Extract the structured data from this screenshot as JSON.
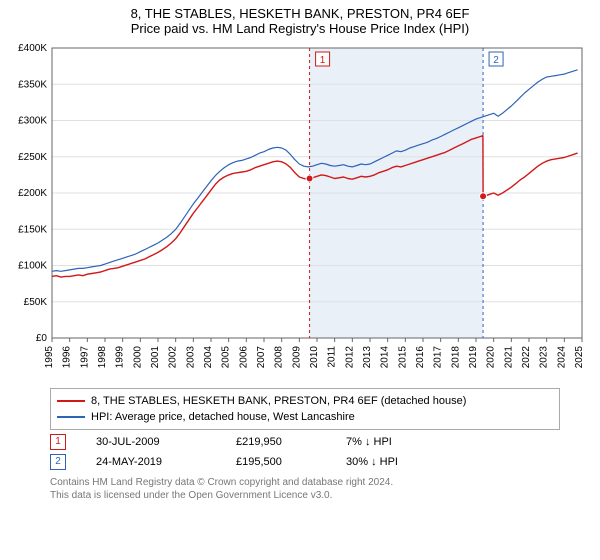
{
  "title": "8, THE STABLES, HESKETH BANK, PRESTON, PR4 6EF",
  "subtitle": "Price paid vs. HM Land Registry's House Price Index (HPI)",
  "chart": {
    "type": "line",
    "background_color": "#ffffff",
    "plot_border_color": "#666666",
    "grid_color": "#e0e0e0",
    "axis_font_size": 10,
    "axis_font_color": "#000000",
    "y": {
      "min": 0,
      "max": 400000,
      "tick_step": 50000,
      "tick_labels": [
        "£0",
        "£50K",
        "£100K",
        "£150K",
        "£200K",
        "£250K",
        "£300K",
        "£350K",
        "£400K"
      ]
    },
    "x": {
      "min": 1995,
      "max": 2025,
      "tick_step": 1,
      "tick_labels": [
        "1995",
        "1996",
        "1997",
        "1998",
        "1999",
        "2000",
        "2001",
        "2002",
        "2003",
        "2004",
        "2005",
        "2006",
        "2007",
        "2008",
        "2009",
        "2010",
        "2011",
        "2012",
        "2013",
        "2014",
        "2015",
        "2016",
        "2017",
        "2018",
        "2019",
        "2020",
        "2021",
        "2022",
        "2023",
        "2024",
        "2025"
      ]
    },
    "shaded_band": {
      "from_year": 2009.58,
      "to_year": 2019.4,
      "fill": "#dbe6f4",
      "opacity": 0.6
    },
    "marker_lines": [
      {
        "id": "1",
        "year": 2009.58,
        "line_color": "#d11919",
        "badge_border": "#d11919",
        "badge_text": "#d11919"
      },
      {
        "id": "2",
        "year": 2019.4,
        "line_color": "#2e63b8",
        "badge_border": "#2e63b8",
        "badge_text": "#2e63b8"
      }
    ],
    "series": [
      {
        "name": "property",
        "label": "8, THE STABLES, HESKETH BANK, PRESTON, PR4 6EF (detached house)",
        "color": "#d11919",
        "width": 1.4,
        "points": [
          [
            1995.0,
            85000
          ],
          [
            1995.25,
            86000
          ],
          [
            1995.5,
            84000
          ],
          [
            1995.75,
            85000
          ],
          [
            1996.0,
            85000
          ],
          [
            1996.25,
            86000
          ],
          [
            1996.5,
            87000
          ],
          [
            1996.75,
            86000
          ],
          [
            1997.0,
            88000
          ],
          [
            1997.25,
            89000
          ],
          [
            1997.5,
            90000
          ],
          [
            1997.75,
            91000
          ],
          [
            1998.0,
            93000
          ],
          [
            1998.25,
            95000
          ],
          [
            1998.5,
            96000
          ],
          [
            1998.75,
            97000
          ],
          [
            1999.0,
            99000
          ],
          [
            1999.25,
            101000
          ],
          [
            1999.5,
            103000
          ],
          [
            1999.75,
            105000
          ],
          [
            2000.0,
            107000
          ],
          [
            2000.25,
            109000
          ],
          [
            2000.5,
            112000
          ],
          [
            2000.75,
            115000
          ],
          [
            2001.0,
            118000
          ],
          [
            2001.25,
            122000
          ],
          [
            2001.5,
            126000
          ],
          [
            2001.75,
            131000
          ],
          [
            2002.0,
            137000
          ],
          [
            2002.25,
            145000
          ],
          [
            2002.5,
            154000
          ],
          [
            2002.75,
            163000
          ],
          [
            2003.0,
            172000
          ],
          [
            2003.25,
            180000
          ],
          [
            2003.5,
            188000
          ],
          [
            2003.75,
            196000
          ],
          [
            2004.0,
            204000
          ],
          [
            2004.25,
            212000
          ],
          [
            2004.5,
            218000
          ],
          [
            2004.75,
            222000
          ],
          [
            2005.0,
            225000
          ],
          [
            2005.25,
            227000
          ],
          [
            2005.5,
            228000
          ],
          [
            2005.75,
            229000
          ],
          [
            2006.0,
            230000
          ],
          [
            2006.25,
            232000
          ],
          [
            2006.5,
            235000
          ],
          [
            2006.75,
            237000
          ],
          [
            2007.0,
            239000
          ],
          [
            2007.25,
            241000
          ],
          [
            2007.5,
            243000
          ],
          [
            2007.75,
            244000
          ],
          [
            2008.0,
            243000
          ],
          [
            2008.25,
            240000
          ],
          [
            2008.5,
            235000
          ],
          [
            2008.75,
            228000
          ],
          [
            2009.0,
            222000
          ],
          [
            2009.25,
            220000
          ],
          [
            2009.5,
            219000
          ],
          [
            2009.58,
            219950
          ],
          [
            2009.75,
            221000
          ],
          [
            2010.0,
            223000
          ],
          [
            2010.25,
            225000
          ],
          [
            2010.5,
            224000
          ],
          [
            2010.75,
            222000
          ],
          [
            2011.0,
            220000
          ],
          [
            2011.25,
            221000
          ],
          [
            2011.5,
            222000
          ],
          [
            2011.75,
            220000
          ],
          [
            2012.0,
            219000
          ],
          [
            2012.25,
            221000
          ],
          [
            2012.5,
            223000
          ],
          [
            2012.75,
            222000
          ],
          [
            2013.0,
            223000
          ],
          [
            2013.25,
            225000
          ],
          [
            2013.5,
            228000
          ],
          [
            2013.75,
            230000
          ],
          [
            2014.0,
            232000
          ],
          [
            2014.25,
            235000
          ],
          [
            2014.5,
            237000
          ],
          [
            2014.75,
            236000
          ],
          [
            2015.0,
            238000
          ],
          [
            2015.25,
            240000
          ],
          [
            2015.5,
            242000
          ],
          [
            2015.75,
            244000
          ],
          [
            2016.0,
            246000
          ],
          [
            2016.25,
            248000
          ],
          [
            2016.5,
            250000
          ],
          [
            2016.75,
            252000
          ],
          [
            2017.0,
            254000
          ],
          [
            2017.25,
            256000
          ],
          [
            2017.5,
            259000
          ],
          [
            2017.75,
            262000
          ],
          [
            2018.0,
            265000
          ],
          [
            2018.25,
            268000
          ],
          [
            2018.5,
            271000
          ],
          [
            2018.75,
            274000
          ],
          [
            2019.0,
            276000
          ],
          [
            2019.25,
            278000
          ],
          [
            2019.39,
            279000
          ],
          [
            2019.4,
            195500
          ],
          [
            2019.5,
            196000
          ],
          [
            2019.75,
            198000
          ],
          [
            2020.0,
            200000
          ],
          [
            2020.25,
            197000
          ],
          [
            2020.5,
            200000
          ],
          [
            2020.75,
            204000
          ],
          [
            2021.0,
            208000
          ],
          [
            2021.25,
            213000
          ],
          [
            2021.5,
            218000
          ],
          [
            2021.75,
            222000
          ],
          [
            2022.0,
            227000
          ],
          [
            2022.25,
            232000
          ],
          [
            2022.5,
            237000
          ],
          [
            2022.75,
            241000
          ],
          [
            2023.0,
            244000
          ],
          [
            2023.25,
            246000
          ],
          [
            2023.5,
            247000
          ],
          [
            2023.75,
            248000
          ],
          [
            2024.0,
            249000
          ],
          [
            2024.25,
            251000
          ],
          [
            2024.5,
            253000
          ],
          [
            2024.75,
            255000
          ]
        ],
        "sale_markers": [
          {
            "year": 2009.58,
            "price": 219950,
            "dot_color": "#d11919"
          },
          {
            "year": 2019.4,
            "price": 195500,
            "dot_color": "#d11919"
          }
        ]
      },
      {
        "name": "hpi",
        "label": "HPI: Average price, detached house, West Lancashire",
        "color": "#2e63b8",
        "width": 1.2,
        "points": [
          [
            1995.0,
            92000
          ],
          [
            1995.25,
            93000
          ],
          [
            1995.5,
            92000
          ],
          [
            1995.75,
            93000
          ],
          [
            1996.0,
            94000
          ],
          [
            1996.25,
            95000
          ],
          [
            1996.5,
            96000
          ],
          [
            1996.75,
            96000
          ],
          [
            1997.0,
            97000
          ],
          [
            1997.25,
            98000
          ],
          [
            1997.5,
            99000
          ],
          [
            1997.75,
            100000
          ],
          [
            1998.0,
            102000
          ],
          [
            1998.25,
            104000
          ],
          [
            1998.5,
            106000
          ],
          [
            1998.75,
            108000
          ],
          [
            1999.0,
            110000
          ],
          [
            1999.25,
            112000
          ],
          [
            1999.5,
            114000
          ],
          [
            1999.75,
            116000
          ],
          [
            2000.0,
            119000
          ],
          [
            2000.25,
            122000
          ],
          [
            2000.5,
            125000
          ],
          [
            2000.75,
            128000
          ],
          [
            2001.0,
            131000
          ],
          [
            2001.25,
            135000
          ],
          [
            2001.5,
            139000
          ],
          [
            2001.75,
            144000
          ],
          [
            2002.0,
            150000
          ],
          [
            2002.25,
            158000
          ],
          [
            2002.5,
            167000
          ],
          [
            2002.75,
            176000
          ],
          [
            2003.0,
            185000
          ],
          [
            2003.25,
            193000
          ],
          [
            2003.5,
            201000
          ],
          [
            2003.75,
            209000
          ],
          [
            2004.0,
            217000
          ],
          [
            2004.25,
            224000
          ],
          [
            2004.5,
            230000
          ],
          [
            2004.75,
            235000
          ],
          [
            2005.0,
            239000
          ],
          [
            2005.25,
            242000
          ],
          [
            2005.5,
            244000
          ],
          [
            2005.75,
            245000
          ],
          [
            2006.0,
            247000
          ],
          [
            2006.25,
            249000
          ],
          [
            2006.5,
            252000
          ],
          [
            2006.75,
            255000
          ],
          [
            2007.0,
            257000
          ],
          [
            2007.25,
            260000
          ],
          [
            2007.5,
            262000
          ],
          [
            2007.75,
            263000
          ],
          [
            2008.0,
            262000
          ],
          [
            2008.25,
            259000
          ],
          [
            2008.5,
            253000
          ],
          [
            2008.75,
            246000
          ],
          [
            2009.0,
            240000
          ],
          [
            2009.25,
            237000
          ],
          [
            2009.5,
            236000
          ],
          [
            2009.75,
            237000
          ],
          [
            2010.0,
            239000
          ],
          [
            2010.25,
            241000
          ],
          [
            2010.5,
            240000
          ],
          [
            2010.75,
            238000
          ],
          [
            2011.0,
            237000
          ],
          [
            2011.25,
            238000
          ],
          [
            2011.5,
            239000
          ],
          [
            2011.75,
            237000
          ],
          [
            2012.0,
            236000
          ],
          [
            2012.25,
            238000
          ],
          [
            2012.5,
            240000
          ],
          [
            2012.75,
            239000
          ],
          [
            2013.0,
            240000
          ],
          [
            2013.25,
            243000
          ],
          [
            2013.5,
            246000
          ],
          [
            2013.75,
            249000
          ],
          [
            2014.0,
            252000
          ],
          [
            2014.25,
            255000
          ],
          [
            2014.5,
            258000
          ],
          [
            2014.75,
            257000
          ],
          [
            2015.0,
            259000
          ],
          [
            2015.25,
            262000
          ],
          [
            2015.5,
            264000
          ],
          [
            2015.75,
            266000
          ],
          [
            2016.0,
            268000
          ],
          [
            2016.25,
            270000
          ],
          [
            2016.5,
            273000
          ],
          [
            2016.75,
            275000
          ],
          [
            2017.0,
            278000
          ],
          [
            2017.25,
            281000
          ],
          [
            2017.5,
            284000
          ],
          [
            2017.75,
            287000
          ],
          [
            2018.0,
            290000
          ],
          [
            2018.25,
            293000
          ],
          [
            2018.5,
            296000
          ],
          [
            2018.75,
            299000
          ],
          [
            2019.0,
            302000
          ],
          [
            2019.25,
            304000
          ],
          [
            2019.5,
            306000
          ],
          [
            2019.75,
            308000
          ],
          [
            2020.0,
            310000
          ],
          [
            2020.25,
            306000
          ],
          [
            2020.5,
            310000
          ],
          [
            2020.75,
            315000
          ],
          [
            2021.0,
            320000
          ],
          [
            2021.25,
            326000
          ],
          [
            2021.5,
            332000
          ],
          [
            2021.75,
            338000
          ],
          [
            2022.0,
            343000
          ],
          [
            2022.25,
            348000
          ],
          [
            2022.5,
            353000
          ],
          [
            2022.75,
            357000
          ],
          [
            2023.0,
            360000
          ],
          [
            2023.25,
            361000
          ],
          [
            2023.5,
            362000
          ],
          [
            2023.75,
            363000
          ],
          [
            2024.0,
            364000
          ],
          [
            2024.25,
            366000
          ],
          [
            2024.5,
            368000
          ],
          [
            2024.75,
            370000
          ]
        ]
      }
    ]
  },
  "legend": {
    "rows": [
      {
        "color": "#d11919",
        "label": "8, THE STABLES, HESKETH BANK, PRESTON, PR4 6EF (detached house)"
      },
      {
        "color": "#2e63b8",
        "label": "HPI: Average price, detached house, West Lancashire"
      }
    ]
  },
  "sales": [
    {
      "badge": "1",
      "badge_color": "#d11919",
      "date": "30-JUL-2009",
      "price": "£219,950",
      "diff": "7% ↓ HPI"
    },
    {
      "badge": "2",
      "badge_color": "#2e63b8",
      "date": "24-MAY-2019",
      "price": "£195,500",
      "diff": "30% ↓ HPI"
    }
  ],
  "attribution": {
    "line1": "Contains HM Land Registry data © Crown copyright and database right 2024.",
    "line2": "This data is licensed under the Open Government Licence v3.0."
  }
}
